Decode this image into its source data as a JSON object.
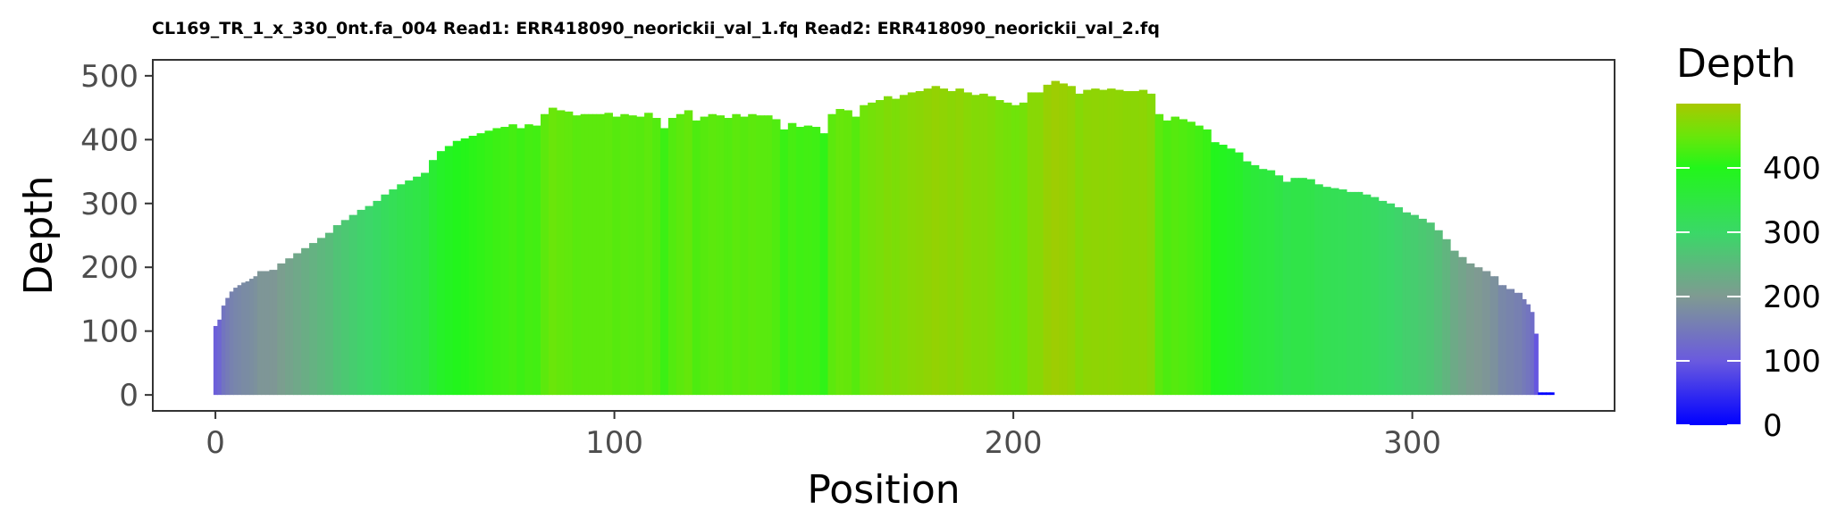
{
  "chart_data": {
    "type": "bar",
    "title": "CL169_TR_1_x_330_0nt.fa_004 Read1: ERR418090_neorickii_val_1.fq Read2: ERR418090_neorickii_val_2.fq",
    "xlabel": "Position",
    "ylabel": "Depth",
    "xlim": [
      -15.7,
      350.7
    ],
    "ylim": [
      -25,
      525
    ],
    "x_ticks": [
      0,
      100,
      200,
      300
    ],
    "x_tick_labels": [
      "0",
      "100",
      "200",
      "300"
    ],
    "y_ticks": [
      0,
      100,
      200,
      300,
      400,
      500
    ],
    "y_tick_labels": [
      "0",
      "100",
      "200",
      "300",
      "400",
      "500"
    ],
    "grid": false,
    "legend": {
      "title": "Depth",
      "placement": "right",
      "type": "colorbar",
      "range": [
        0,
        500
      ],
      "breaks": [
        0,
        100,
        200,
        300,
        400
      ],
      "labels": [
        "0",
        "100",
        "200",
        "300",
        "400"
      ],
      "color_stops": [
        {
          "value": 0,
          "color": "#0000ff"
        },
        {
          "value": 100,
          "color": "#6a5adf"
        },
        {
          "value": 200,
          "color": "#7f9a92"
        },
        {
          "value": 300,
          "color": "#3ad867"
        },
        {
          "value": 400,
          "color": "#22f61a"
        },
        {
          "value": 450,
          "color": "#6ae60a"
        },
        {
          "value": 500,
          "color": "#a8c800"
        }
      ]
    },
    "profile": [
      [
        0,
        108
      ],
      [
        1,
        118
      ],
      [
        2,
        140
      ],
      [
        3,
        152
      ],
      [
        4,
        162
      ],
      [
        5,
        168
      ],
      [
        6,
        172
      ],
      [
        7,
        176
      ],
      [
        8,
        178
      ],
      [
        9,
        182
      ],
      [
        10,
        186
      ],
      [
        11,
        194
      ],
      [
        14,
        196
      ],
      [
        16,
        206
      ],
      [
        18,
        214
      ],
      [
        20,
        222
      ],
      [
        22,
        230
      ],
      [
        24,
        238
      ],
      [
        26,
        246
      ],
      [
        28,
        254
      ],
      [
        30,
        266
      ],
      [
        32,
        274
      ],
      [
        34,
        282
      ],
      [
        36,
        290
      ],
      [
        38,
        296
      ],
      [
        40,
        304
      ],
      [
        42,
        314
      ],
      [
        44,
        322
      ],
      [
        46,
        330
      ],
      [
        48,
        336
      ],
      [
        50,
        342
      ],
      [
        52,
        348
      ],
      [
        54,
        368
      ],
      [
        56,
        382
      ],
      [
        58,
        390
      ],
      [
        60,
        398
      ],
      [
        62,
        402
      ],
      [
        64,
        406
      ],
      [
        66,
        410
      ],
      [
        68,
        414
      ],
      [
        70,
        418
      ],
      [
        72,
        420
      ],
      [
        74,
        424
      ],
      [
        76,
        418
      ],
      [
        78,
        424
      ],
      [
        80,
        422
      ],
      [
        82,
        440
      ],
      [
        84,
        450
      ],
      [
        86,
        446
      ],
      [
        88,
        444
      ],
      [
        90,
        438
      ],
      [
        92,
        440
      ],
      [
        94,
        440
      ],
      [
        96,
        440
      ],
      [
        98,
        442
      ],
      [
        100,
        436
      ],
      [
        102,
        440
      ],
      [
        104,
        438
      ],
      [
        106,
        436
      ],
      [
        108,
        442
      ],
      [
        110,
        434
      ],
      [
        112,
        418
      ],
      [
        114,
        434
      ],
      [
        116,
        440
      ],
      [
        118,
        446
      ],
      [
        120,
        430
      ],
      [
        122,
        436
      ],
      [
        124,
        440
      ],
      [
        126,
        438
      ],
      [
        128,
        434
      ],
      [
        130,
        440
      ],
      [
        132,
        436
      ],
      [
        134,
        440
      ],
      [
        136,
        438
      ],
      [
        138,
        438
      ],
      [
        140,
        432
      ],
      [
        142,
        416
      ],
      [
        144,
        426
      ],
      [
        146,
        420
      ],
      [
        148,
        422
      ],
      [
        150,
        420
      ],
      [
        152,
        410
      ],
      [
        154,
        440
      ],
      [
        156,
        448
      ],
      [
        158,
        446
      ],
      [
        160,
        436
      ],
      [
        162,
        454
      ],
      [
        164,
        458
      ],
      [
        166,
        462
      ],
      [
        168,
        468
      ],
      [
        170,
        464
      ],
      [
        172,
        470
      ],
      [
        174,
        474
      ],
      [
        176,
        476
      ],
      [
        178,
        480
      ],
      [
        180,
        484
      ],
      [
        182,
        480
      ],
      [
        184,
        476
      ],
      [
        186,
        480
      ],
      [
        188,
        474
      ],
      [
        190,
        470
      ],
      [
        192,
        472
      ],
      [
        194,
        468
      ],
      [
        196,
        462
      ],
      [
        198,
        458
      ],
      [
        200,
        454
      ],
      [
        202,
        458
      ],
      [
        204,
        474
      ],
      [
        206,
        474
      ],
      [
        208,
        486
      ],
      [
        210,
        492
      ],
      [
        212,
        488
      ],
      [
        214,
        484
      ],
      [
        216,
        472
      ],
      [
        218,
        478
      ],
      [
        220,
        480
      ],
      [
        222,
        478
      ],
      [
        224,
        480
      ],
      [
        226,
        478
      ],
      [
        228,
        476
      ],
      [
        230,
        476
      ],
      [
        232,
        478
      ],
      [
        234,
        472
      ],
      [
        236,
        440
      ],
      [
        238,
        430
      ],
      [
        240,
        436
      ],
      [
        242,
        432
      ],
      [
        244,
        428
      ],
      [
        246,
        422
      ],
      [
        248,
        416
      ],
      [
        250,
        396
      ],
      [
        252,
        392
      ],
      [
        254,
        386
      ],
      [
        256,
        380
      ],
      [
        258,
        366
      ],
      [
        260,
        360
      ],
      [
        262,
        354
      ],
      [
        264,
        352
      ],
      [
        266,
        344
      ],
      [
        268,
        334
      ],
      [
        270,
        340
      ],
      [
        272,
        340
      ],
      [
        274,
        338
      ],
      [
        276,
        330
      ],
      [
        278,
        326
      ],
      [
        280,
        324
      ],
      [
        282,
        322
      ],
      [
        284,
        318
      ],
      [
        286,
        318
      ],
      [
        288,
        314
      ],
      [
        290,
        310
      ],
      [
        292,
        304
      ],
      [
        294,
        300
      ],
      [
        296,
        294
      ],
      [
        298,
        286
      ],
      [
        300,
        282
      ],
      [
        302,
        276
      ],
      [
        304,
        270
      ],
      [
        306,
        258
      ],
      [
        308,
        244
      ],
      [
        310,
        226
      ],
      [
        312,
        216
      ],
      [
        314,
        206
      ],
      [
        316,
        200
      ],
      [
        318,
        194
      ],
      [
        320,
        186
      ],
      [
        322,
        172
      ],
      [
        324,
        166
      ],
      [
        326,
        160
      ],
      [
        328,
        150
      ],
      [
        329,
        142
      ],
      [
        330,
        130
      ],
      [
        331,
        96
      ],
      [
        332,
        4
      ],
      [
        335,
        4
      ]
    ]
  }
}
